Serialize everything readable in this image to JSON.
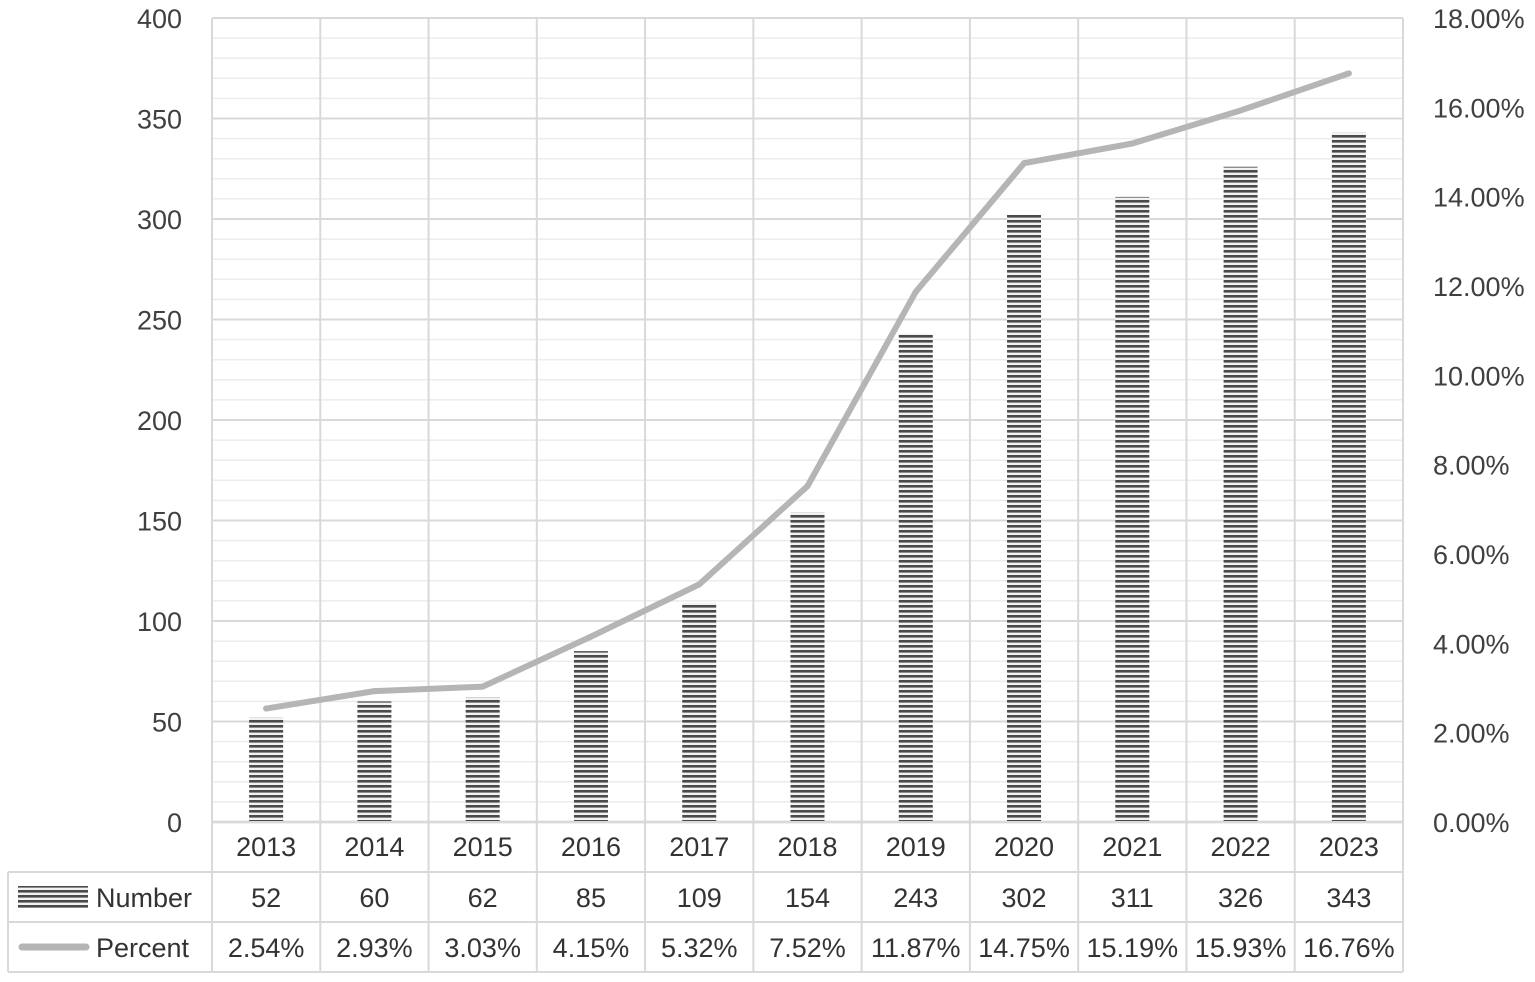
{
  "chart_data": {
    "type": "bar",
    "categories": [
      "2013",
      "2014",
      "2015",
      "2016",
      "2017",
      "2018",
      "2019",
      "2020",
      "2021",
      "2022",
      "2023"
    ],
    "series": [
      {
        "name": "Number",
        "type": "bar",
        "axis": "left",
        "values": [
          52,
          60,
          62,
          85,
          109,
          154,
          243,
          302,
          311,
          326,
          343
        ],
        "labels": [
          "52",
          "60",
          "62",
          "85",
          "109",
          "154",
          "243",
          "302",
          "311",
          "326",
          "343"
        ]
      },
      {
        "name": "Percent",
        "type": "line",
        "axis": "right",
        "values": [
          2.54,
          2.93,
          3.03,
          4.15,
          5.32,
          7.52,
          11.87,
          14.75,
          15.19,
          15.93,
          16.76
        ],
        "labels": [
          "2.54%",
          "2.93%",
          "3.03%",
          "4.15%",
          "5.32%",
          "7.52%",
          "11.87%",
          "14.75%",
          "15.19%",
          "15.93%",
          "16.76%"
        ]
      }
    ],
    "ylim": [
      0,
      400
    ],
    "y_ticks": [
      "0",
      "50",
      "100",
      "150",
      "200",
      "250",
      "300",
      "350",
      "400"
    ],
    "y2lim": [
      0,
      18
    ],
    "y2_ticks": [
      "0.00%",
      "2.00%",
      "4.00%",
      "6.00%",
      "8.00%",
      "10.00%",
      "12.00%",
      "14.00%",
      "16.00%",
      "18.00%"
    ],
    "grid": true,
    "legend": "data-table-bottom",
    "colors": {
      "bar": "#5a5a5a",
      "line": "#b5b5b5",
      "grid": "#d9d9d9"
    }
  }
}
